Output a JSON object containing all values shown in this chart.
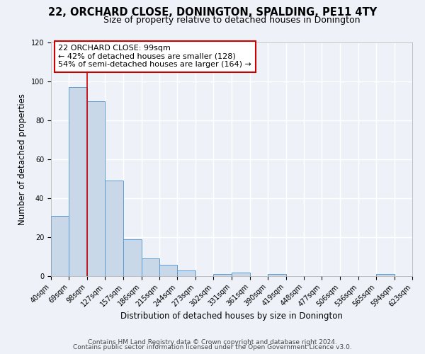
{
  "title": "22, ORCHARD CLOSE, DONINGTON, SPALDING, PE11 4TY",
  "subtitle": "Size of property relative to detached houses in Donington",
  "xlabel": "Distribution of detached houses by size in Donington",
  "ylabel": "Number of detached properties",
  "bin_edges": [
    40,
    69,
    98,
    127,
    157,
    186,
    215,
    244,
    273,
    302,
    331,
    361,
    390,
    419,
    448,
    477,
    506,
    536,
    565,
    594,
    623
  ],
  "bin_labels": [
    "40sqm",
    "69sqm",
    "98sqm",
    "127sqm",
    "157sqm",
    "186sqm",
    "215sqm",
    "244sqm",
    "273sqm",
    "302sqm",
    "331sqm",
    "361sqm",
    "390sqm",
    "419sqm",
    "448sqm",
    "477sqm",
    "506sqm",
    "536sqm",
    "565sqm",
    "594sqm",
    "623sqm"
  ],
  "counts": [
    31,
    97,
    90,
    49,
    19,
    9,
    6,
    3,
    0,
    1,
    2,
    0,
    1,
    0,
    0,
    0,
    0,
    0,
    1,
    0
  ],
  "bar_color": "#c8d8e8",
  "bar_edge_color": "#5b9bd5",
  "vline_x": 98,
  "vline_color": "#cc0000",
  "annotation_line1": "22 ORCHARD CLOSE: 99sqm",
  "annotation_line2": "← 42% of detached houses are smaller (128)",
  "annotation_line3": "54% of semi-detached houses are larger (164) →",
  "ylim": [
    0,
    120
  ],
  "yticks": [
    0,
    20,
    40,
    60,
    80,
    100,
    120
  ],
  "footer_line1": "Contains HM Land Registry data © Crown copyright and database right 2024.",
  "footer_line2": "Contains public sector information licensed under the Open Government Licence v3.0.",
  "background_color": "#eef2f8",
  "plot_bg_color": "#eef2f8",
  "grid_color": "#ffffff",
  "title_fontsize": 10.5,
  "subtitle_fontsize": 9,
  "axis_label_fontsize": 8.5,
  "tick_fontsize": 7,
  "footer_fontsize": 6.5,
  "annot_fontsize": 8
}
